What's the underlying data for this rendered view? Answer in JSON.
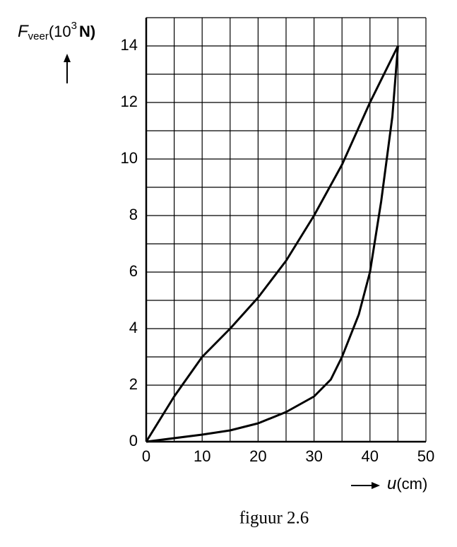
{
  "chart_data": {
    "type": "line",
    "y_label": {
      "symbol": "F",
      "subscript": "veer",
      "unit_start": "(10",
      "superscript": "3",
      "unit_end": "N)"
    },
    "x_label": {
      "symbol": "u",
      "unit": "(cm)"
    },
    "caption": "figuur 2.6",
    "series": [
      {
        "color": "#000000",
        "x": [
          0,
          5,
          10,
          15,
          20,
          25,
          30,
          35,
          40,
          45
        ],
        "values": [
          0,
          1.6,
          3,
          4,
          5.1,
          6.4,
          8,
          9.8,
          12,
          14
        ]
      },
      {
        "color": "#000000",
        "x": [
          0,
          10,
          15,
          20,
          25,
          30,
          33,
          35,
          38,
          40,
          42,
          44,
          45
        ],
        "values": [
          0,
          0.25,
          0.4,
          0.65,
          1.05,
          1.6,
          2.2,
          3,
          4.5,
          6,
          8.5,
          11.5,
          14
        ]
      }
    ],
    "xlim": [
      0,
      50
    ],
    "ylim": [
      0,
      15
    ],
    "xticks": [
      0,
      10,
      20,
      30,
      40,
      50
    ],
    "yticks": [
      0,
      2,
      4,
      6,
      8,
      10,
      12,
      14
    ],
    "xminorticks": [
      5,
      15,
      25,
      35,
      45
    ],
    "yminorticks": [
      1,
      3,
      5,
      7,
      9,
      11,
      13,
      15
    ],
    "grid": true
  }
}
